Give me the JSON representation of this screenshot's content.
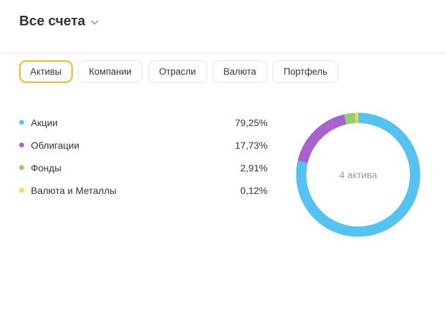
{
  "header": {
    "title": "Все счета"
  },
  "tabs": [
    {
      "label": "Активы",
      "active": true
    },
    {
      "label": "Компании",
      "active": false
    },
    {
      "label": "Отрасли",
      "active": false
    },
    {
      "label": "Валюта",
      "active": false
    },
    {
      "label": "Портфель",
      "active": false
    }
  ],
  "chart_data": {
    "type": "pie",
    "donut": true,
    "title": "",
    "center_label": "4 актива",
    "categories": [
      "Акции",
      "Облигации",
      "Фонды",
      "Валюта и Металлы"
    ],
    "values": [
      79.25,
      17.73,
      2.91,
      0.12
    ],
    "value_labels": [
      "79,25%",
      "17,73%",
      "2,91%",
      "0,12%"
    ],
    "colors": [
      "#54c3f1",
      "#a961cd",
      "#8ed16f",
      "#ffd83a"
    ],
    "legend_position": "left"
  },
  "colors": {
    "active_tab_border": "#fab619",
    "divider": "#e9e9e9",
    "text_primary": "#333333",
    "text_muted": "#9299a2"
  }
}
